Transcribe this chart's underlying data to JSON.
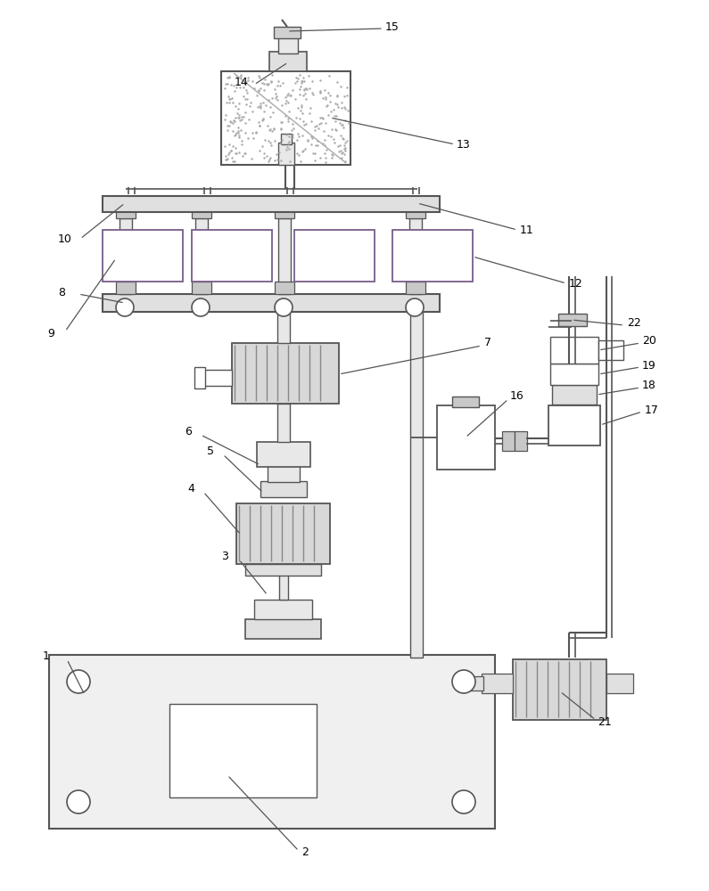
{
  "bg_color": "#ffffff",
  "lc": "#555555",
  "lc2": "#7a5c8a",
  "figsize": [
    7.95,
    10.0
  ],
  "dpi": 100
}
